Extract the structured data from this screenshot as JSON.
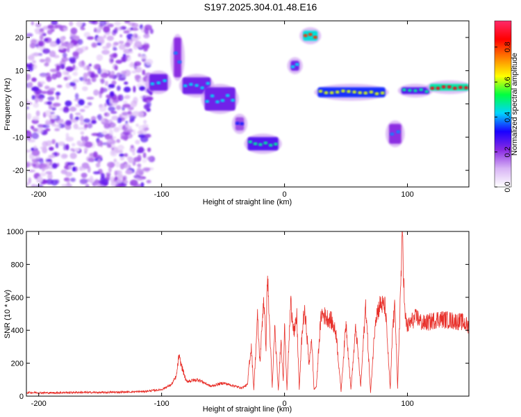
{
  "title": "S197.2025.304.01.48.E16",
  "chart_data": [
    {
      "type": "heatmap",
      "xlabel": "Height of straight line (km)",
      "ylabel": "Frequency (Hz)",
      "xlim": [
        -210,
        150
      ],
      "ylim": [
        -25,
        25
      ],
      "xticks": [
        -200,
        -100,
        0,
        100
      ],
      "yticks": [
        -20,
        -10,
        0,
        10,
        20
      ],
      "colorbar": {
        "label": "Normalized spectral amplitude",
        "range": [
          0.0,
          0.95
        ],
        "ticks": [
          0.0,
          0.2,
          0.4,
          0.6,
          0.8
        ],
        "tick_labels": [
          "0.0",
          "0.2",
          "0.4",
          "0.6",
          "0.8"
        ],
        "colors": [
          "#ffffff",
          "#d8b4f5",
          "#8a2be2",
          "#1a00ff",
          "#00d5ff",
          "#00ff40",
          "#ffff00",
          "#ff8000",
          "#ff0000",
          "#ff2a6a"
        ]
      },
      "noise_region": {
        "x": [
          -210,
          -108
        ],
        "y": [
          -25,
          25
        ]
      },
      "features": [
        {
          "x": [
            -110,
            -95
          ],
          "y": [
            4,
            9
          ],
          "value": 0.45
        },
        {
          "x": [
            -90,
            -84
          ],
          "y": [
            8,
            20
          ],
          "value": 0.4
        },
        {
          "x": [
            -83,
            -60
          ],
          "y": [
            3,
            8
          ],
          "value": 0.45
        },
        {
          "x": [
            -65,
            -40
          ],
          "y": [
            -2,
            5
          ],
          "value": 0.45
        },
        {
          "x": [
            -40,
            -33
          ],
          "y": [
            -8,
            -4
          ],
          "value": 0.35
        },
        {
          "x": [
            -30,
            -5
          ],
          "y": [
            -14,
            -10
          ],
          "value": 0.5
        },
        {
          "x": [
            5,
            12
          ],
          "y": [
            10,
            13
          ],
          "value": 0.45
        },
        {
          "x": [
            15,
            27
          ],
          "y": [
            19,
            22
          ],
          "value": 0.85
        },
        {
          "x": [
            27,
            82
          ],
          "y": [
            2,
            5
          ],
          "value": 0.65
        },
        {
          "x": [
            85,
            95
          ],
          "y": [
            -12,
            -6
          ],
          "value": 0.4
        },
        {
          "x": [
            95,
            118
          ],
          "y": [
            3,
            5
          ],
          "value": 0.5
        },
        {
          "x": [
            118,
            150
          ],
          "y": [
            4,
            6
          ],
          "value": 0.9
        }
      ]
    },
    {
      "type": "line",
      "xlabel": "Height of straight line (km)",
      "ylabel": "SNR (10 * v/v)",
      "xlim": [
        -210,
        150
      ],
      "ylim": [
        0,
        1000
      ],
      "xticks": [
        -200,
        -100,
        0,
        100
      ],
      "yticks": [
        0,
        200,
        400,
        600,
        800,
        1000
      ],
      "color": "#e8302a",
      "series": [
        {
          "name": "SNR",
          "x": [
            -210,
            -190,
            -170,
            -150,
            -130,
            -115,
            -100,
            -92,
            -88,
            -86,
            -80,
            -70,
            -60,
            -50,
            -45,
            -40,
            -35,
            -30,
            -29,
            -27,
            -25,
            -22,
            -20,
            -17,
            -15,
            -14,
            -10,
            -8,
            -5,
            -3,
            -1,
            0,
            2,
            5,
            8,
            10,
            12,
            14,
            16,
            18,
            20,
            22,
            24,
            26,
            28,
            30,
            34,
            38,
            42,
            46,
            50,
            54,
            58,
            62,
            66,
            70,
            74,
            78,
            82,
            86,
            88,
            90,
            92,
            94,
            96,
            97,
            98,
            100,
            104,
            108,
            112,
            118,
            125,
            135,
            145,
            150
          ],
          "y": [
            22,
            20,
            23,
            22,
            25,
            28,
            40,
            70,
            120,
            240,
            90,
            100,
            60,
            80,
            70,
            60,
            50,
            70,
            180,
            300,
            40,
            480,
            200,
            600,
            300,
            750,
            50,
            420,
            30,
            350,
            100,
            430,
            40,
            570,
            380,
            480,
            40,
            350,
            520,
            400,
            180,
            360,
            40,
            60,
            320,
            500,
            480,
            460,
            380,
            30,
            450,
            40,
            420,
            60,
            560,
            20,
            480,
            560,
            540,
            40,
            420,
            550,
            40,
            560,
            1000,
            700,
            480,
            420,
            460,
            480,
            440,
            450,
            470,
            460,
            450,
            420
          ]
        }
      ]
    }
  ]
}
